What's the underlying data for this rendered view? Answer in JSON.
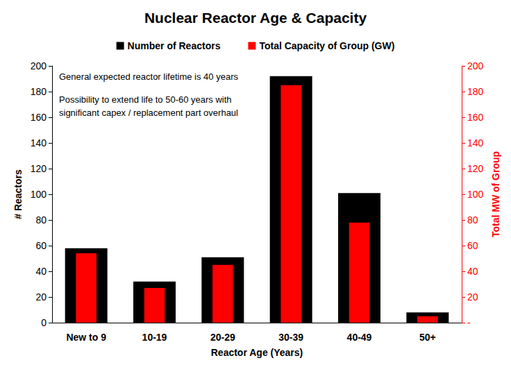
{
  "chart_data": {
    "type": "bar",
    "title": "Nuclear Reactor Age & Capacity",
    "categories": [
      "New to 9",
      "10-19",
      "20-29",
      "30-39",
      "40-49",
      "50+"
    ],
    "series": [
      {
        "name": "Number of Reactors",
        "color": "#000000",
        "values": [
          58,
          32,
          51,
          192,
          101,
          8
        ]
      },
      {
        "name": "Total Capacity of Group (GW)",
        "color": "#ff0000",
        "values": [
          54,
          27,
          45,
          185,
          78,
          5
        ],
        "axis": "y2"
      }
    ],
    "xlabel": "Reactor Age (Years)",
    "ylabel": "# Reactors",
    "y2label": "Total MW of Group",
    "ylim": [
      0,
      200
    ],
    "yticks": [
      0,
      20,
      40,
      60,
      80,
      100,
      120,
      140,
      160,
      180,
      200
    ],
    "y2lim": [
      0,
      200
    ],
    "y2ticks": [
      {
        "value": 0,
        "label": "-"
      },
      20,
      40,
      60,
      80,
      100,
      120,
      140,
      160,
      180,
      200
    ],
    "annotations": [
      "General expected reactor lifetime is 40 years",
      "Possibility to extend life to 50-60 years with\nsignificant capex / replacement part overhaul"
    ],
    "legend": "top",
    "grid": false
  }
}
